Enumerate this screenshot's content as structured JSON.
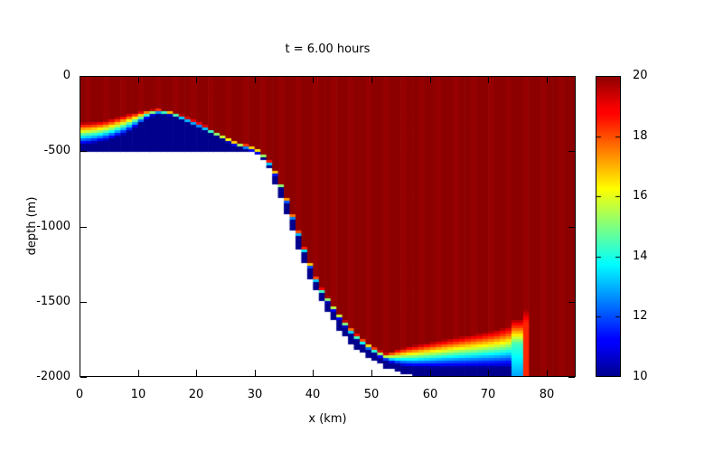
{
  "chart_data": {
    "type": "heatmap",
    "title": "t = 6.00 hours",
    "xlabel": "x (km)",
    "ylabel": "depth (m)",
    "xlim": [
      0,
      85
    ],
    "ylim": [
      -2000,
      0
    ],
    "xticks": [
      0,
      10,
      20,
      30,
      40,
      50,
      60,
      70,
      80
    ],
    "yticks": [
      0,
      -500,
      -1000,
      -1500,
      -2000
    ],
    "grid": false,
    "colorbar": {
      "range": [
        10,
        20
      ],
      "ticks": [
        10,
        12,
        14,
        16,
        18,
        20
      ],
      "colormap": "jet",
      "position": "right"
    },
    "field": {
      "description": "Temperature section: 20-degree upper ocean over 10-degree bottom water; internal bore on the shelf, thin cold layer down the slope, stratified bottom wedge and upwelling jet near x=75 km",
      "warm_value": 20,
      "cold_value": 10,
      "masked_color": "#ffffff",
      "bathymetry_m": [
        [
          0,
          -500
        ],
        [
          28,
          -500
        ],
        [
          30,
          -515
        ],
        [
          32,
          -575
        ],
        [
          34,
          -760
        ],
        [
          36,
          -980
        ],
        [
          38,
          -1200
        ],
        [
          40,
          -1395
        ],
        [
          42,
          -1540
        ],
        [
          44,
          -1660
        ],
        [
          46,
          -1760
        ],
        [
          48,
          -1830
        ],
        [
          50,
          -1885
        ],
        [
          52,
          -1930
        ],
        [
          54,
          -1960
        ],
        [
          56,
          -1985
        ],
        [
          58,
          -2000
        ],
        [
          85,
          -2000
        ]
      ],
      "interface_top_m": [
        [
          0,
          -460
        ],
        [
          2,
          -452
        ],
        [
          4,
          -438
        ],
        [
          6,
          -415
        ],
        [
          8,
          -385
        ],
        [
          10,
          -330
        ],
        [
          12,
          -270
        ],
        [
          13.5,
          -252
        ],
        [
          15,
          -257
        ],
        [
          17,
          -280
        ],
        [
          19,
          -315
        ],
        [
          21,
          -350
        ],
        [
          23,
          -393
        ],
        [
          25,
          -433
        ],
        [
          27,
          -472
        ],
        [
          29,
          -490
        ],
        [
          31,
          -525
        ],
        [
          33,
          -620
        ],
        [
          35,
          -790
        ],
        [
          37,
          -1010
        ],
        [
          39,
          -1230
        ],
        [
          41,
          -1420
        ],
        [
          43,
          -1535
        ],
        [
          45,
          -1645
        ],
        [
          47,
          -1740
        ],
        [
          49,
          -1808
        ],
        [
          51,
          -1860
        ],
        [
          53,
          -1902
        ],
        [
          55,
          -1926
        ],
        [
          57,
          -1938
        ],
        [
          60,
          -1940
        ],
        [
          75.8,
          -1940
        ]
      ],
      "transition_width_m": [
        [
          0,
          150
        ],
        [
          8,
          130
        ],
        [
          10,
          90
        ],
        [
          12,
          45
        ],
        [
          14,
          28
        ],
        [
          30,
          32
        ],
        [
          45,
          40
        ],
        [
          52,
          45
        ],
        [
          85,
          45
        ]
      ],
      "bottom_wedge": {
        "x_range": [
          52,
          74.5
        ],
        "top_of_warm_m": [
          [
            52,
            -1850
          ],
          [
            56,
            -1800
          ],
          [
            60,
            -1770
          ],
          [
            64,
            -1740
          ],
          [
            68,
            -1712
          ],
          [
            71,
            -1690
          ],
          [
            73,
            -1668
          ],
          [
            74.5,
            -1645
          ]
        ]
      },
      "upwelling_stripe": {
        "x_range": [
          74.5,
          75.8
        ],
        "bottom_value": 12.8,
        "core_value": 14.4,
        "core_top_m": -1780,
        "warm_blend_top_m": -1615
      },
      "warm_column": {
        "x_range": [
          75.8,
          77.4
        ],
        "value": 18.4,
        "blend_range_m": [
          -1640,
          -1545
        ]
      },
      "resolution": {
        "nx": 85,
        "nz": 111
      }
    }
  }
}
